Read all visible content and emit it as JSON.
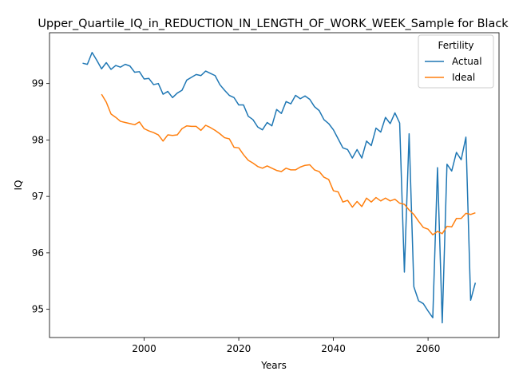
{
  "chart_data": {
    "type": "line",
    "title": "Upper_Quartile_IQ_in_REDUCTION_IN_LENGTH_OF_WORK_WEEK_Sample for Black",
    "xlabel": "Years",
    "ylabel": "IQ",
    "xlim": [
      1980,
      2075
    ],
    "ylim": [
      94.5,
      99.9
    ],
    "xticks": [
      2000,
      2020,
      2040,
      2060
    ],
    "yticks": [
      95,
      96,
      97,
      98,
      99
    ],
    "grid": false,
    "legend": {
      "title": "Fertility",
      "placement": "top-right"
    },
    "series": [
      {
        "name": "Actual",
        "color": "#1f77b4",
        "x": [
          1987,
          1988,
          1989,
          1990,
          1991,
          1992,
          1993,
          1994,
          1995,
          1996,
          1997,
          1998,
          1999,
          2000,
          2001,
          2002,
          2003,
          2004,
          2005,
          2006,
          2007,
          2008,
          2009,
          2010,
          2011,
          2012,
          2013,
          2014,
          2015,
          2016,
          2017,
          2018,
          2019,
          2020,
          2021,
          2022,
          2023,
          2024,
          2025,
          2026,
          2027,
          2028,
          2029,
          2030,
          2031,
          2032,
          2033,
          2034,
          2035,
          2036,
          2037,
          2038,
          2039,
          2040,
          2041,
          2042,
          2043,
          2044,
          2045,
          2046,
          2047,
          2048,
          2049,
          2050,
          2051,
          2052,
          2053,
          2054,
          2055,
          2056,
          2057,
          2058,
          2059,
          2060,
          2061,
          2062,
          2063,
          2064,
          2065,
          2066,
          2067,
          2068,
          2069,
          2070
        ],
        "values": [
          99.36,
          99.34,
          99.55,
          99.41,
          99.26,
          99.37,
          99.25,
          99.32,
          99.29,
          99.34,
          99.31,
          99.2,
          99.21,
          99.08,
          99.09,
          98.98,
          99.0,
          98.81,
          98.86,
          98.75,
          98.83,
          98.88,
          99.06,
          99.11,
          99.16,
          99.14,
          99.22,
          99.18,
          99.14,
          98.98,
          98.88,
          98.79,
          98.75,
          98.62,
          98.62,
          98.42,
          98.36,
          98.23,
          98.18,
          98.31,
          98.25,
          98.54,
          98.47,
          98.68,
          98.64,
          98.79,
          98.73,
          98.78,
          98.72,
          98.59,
          98.52,
          98.36,
          98.29,
          98.18,
          98.02,
          97.86,
          97.83,
          97.68,
          97.83,
          97.68,
          97.98,
          97.9,
          98.21,
          98.14,
          98.4,
          98.29,
          98.48,
          98.3,
          95.66,
          98.11,
          95.4,
          95.15,
          95.1,
          94.97,
          94.85,
          97.51,
          94.76,
          97.57,
          97.45,
          97.78,
          97.65,
          98.05,
          95.16,
          95.47
        ]
      },
      {
        "name": "Ideal",
        "color": "#ff7f0e",
        "x": [
          1991,
          1992,
          1993,
          1994,
          1995,
          1996,
          1997,
          1998,
          1999,
          2000,
          2001,
          2002,
          2003,
          2004,
          2005,
          2006,
          2007,
          2008,
          2009,
          2010,
          2011,
          2012,
          2013,
          2014,
          2015,
          2016,
          2017,
          2018,
          2019,
          2020,
          2021,
          2022,
          2023,
          2024,
          2025,
          2026,
          2027,
          2028,
          2029,
          2030,
          2031,
          2032,
          2033,
          2034,
          2035,
          2036,
          2037,
          2038,
          2039,
          2040,
          2041,
          2042,
          2043,
          2044,
          2045,
          2046,
          2047,
          2048,
          2049,
          2050,
          2051,
          2052,
          2053,
          2054,
          2055,
          2056,
          2057,
          2058,
          2059,
          2060,
          2061,
          2062,
          2063,
          2064,
          2065,
          2066,
          2067,
          2068,
          2069,
          2070
        ],
        "values": [
          98.81,
          98.67,
          98.46,
          98.4,
          98.33,
          98.31,
          98.29,
          98.27,
          98.32,
          98.2,
          98.16,
          98.13,
          98.09,
          97.98,
          98.09,
          98.08,
          98.09,
          98.2,
          98.25,
          98.24,
          98.24,
          98.17,
          98.26,
          98.22,
          98.17,
          98.11,
          98.04,
          98.02,
          97.87,
          97.86,
          97.74,
          97.64,
          97.59,
          97.53,
          97.5,
          97.54,
          97.5,
          97.46,
          97.44,
          97.5,
          97.47,
          97.47,
          97.52,
          97.55,
          97.56,
          97.47,
          97.44,
          97.34,
          97.3,
          97.1,
          97.08,
          96.9,
          96.93,
          96.81,
          96.91,
          96.82,
          96.97,
          96.9,
          96.98,
          96.92,
          96.97,
          96.92,
          96.95,
          96.88,
          96.86,
          96.76,
          96.68,
          96.56,
          96.45,
          96.42,
          96.32,
          96.38,
          96.34,
          96.47,
          96.46,
          96.61,
          96.61,
          96.7,
          96.68,
          96.71
        ]
      }
    ]
  }
}
